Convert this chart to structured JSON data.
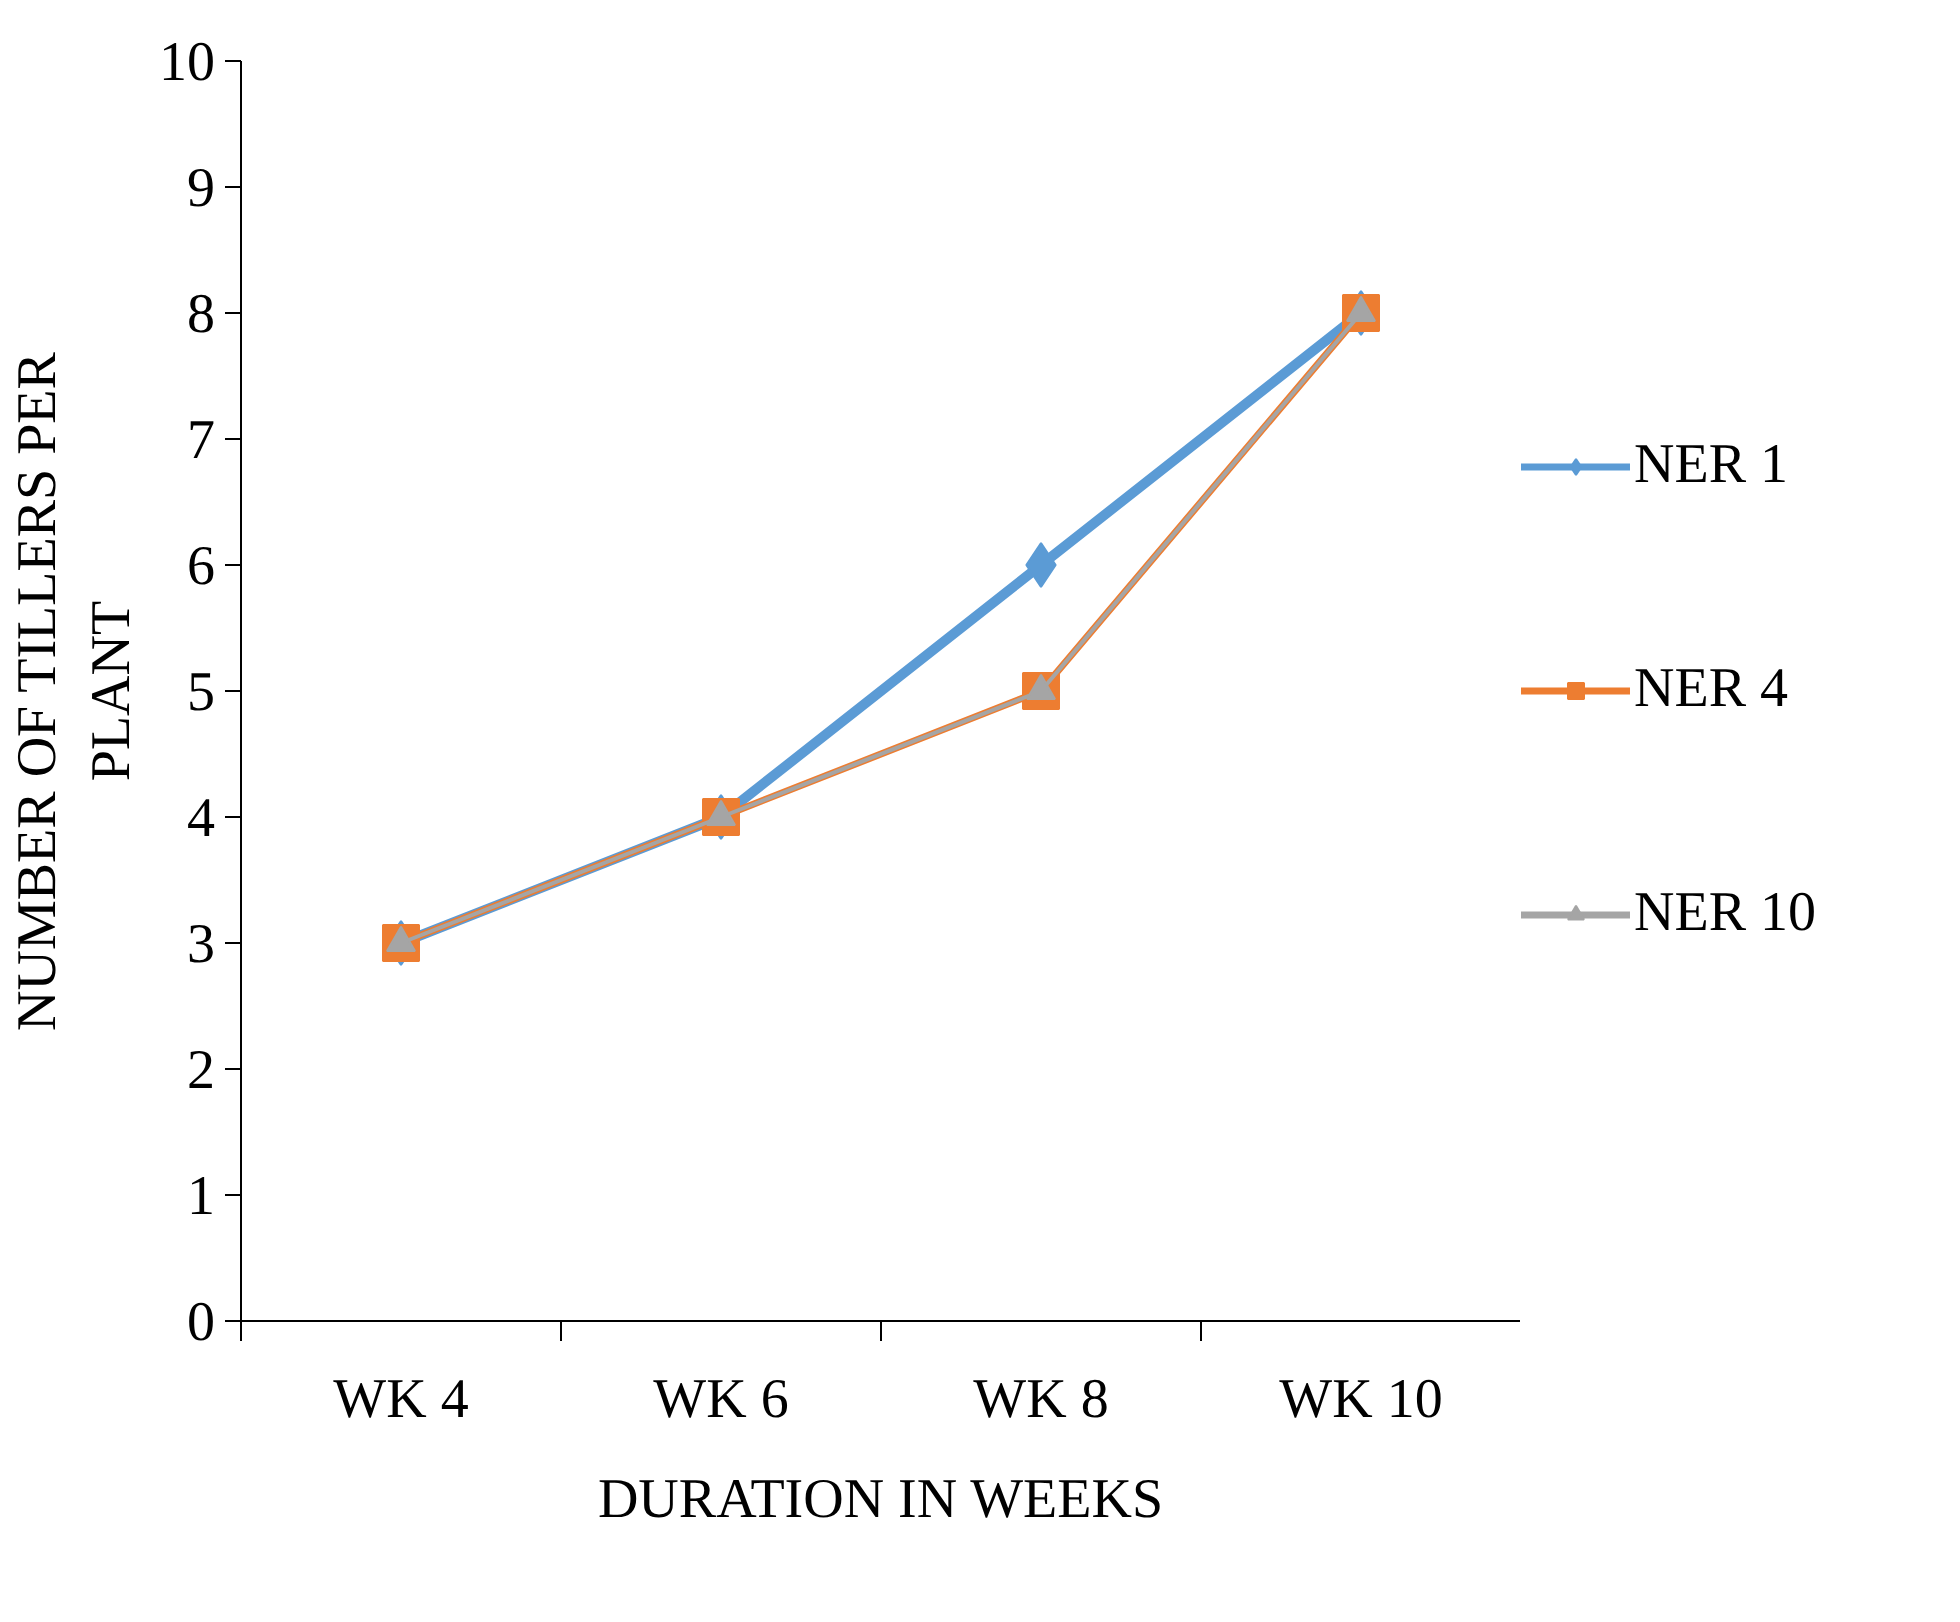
{
  "chart_data": {
    "type": "line",
    "xlabel": "DURATION IN WEEKS",
    "ylabel": "NUMBER OF TILLERS PER\nPLANT",
    "categories": [
      "WK 4",
      "WK 6",
      "WK 8",
      "WK 10"
    ],
    "series": [
      {
        "name": "NER 1",
        "color": "#5b9bd5",
        "marker": "diamond",
        "values": [
          3,
          4,
          6,
          8
        ]
      },
      {
        "name": "NER 4",
        "color": "#ed7d31",
        "marker": "square",
        "values": [
          3,
          4,
          5,
          8
        ]
      },
      {
        "name": "NER 10",
        "color": "#a5a5a5",
        "marker": "triangle",
        "values": [
          3,
          4,
          5,
          8
        ]
      }
    ],
    "ylim": [
      0,
      10
    ],
    "yticks": [
      0,
      1,
      2,
      3,
      4,
      5,
      6,
      7,
      8,
      9,
      10
    ],
    "grid": false,
    "legend": "right",
    "line_style": "solid"
  }
}
